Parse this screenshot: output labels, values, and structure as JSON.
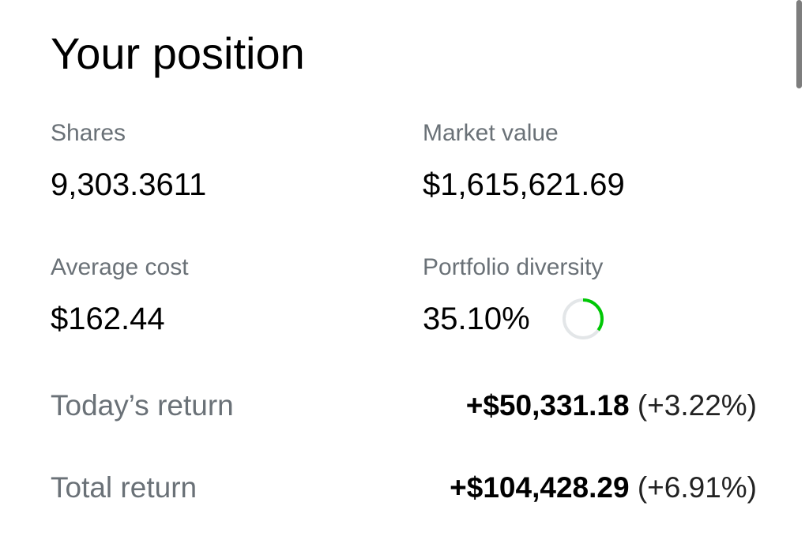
{
  "header": {
    "title": "Your position"
  },
  "stats": {
    "shares": {
      "label": "Shares",
      "value": "9,303.3611"
    },
    "market_value": {
      "label": "Market value",
      "value": "$1,615,621.69"
    },
    "average_cost": {
      "label": "Average cost",
      "value": "$162.44"
    },
    "portfolio_diversity": {
      "label": "Portfolio diversity",
      "percent": {
        "value": 35.1,
        "label": "35.10%"
      }
    }
  },
  "returns": {
    "today": {
      "label": "Today’s return",
      "amount": "+$50,331.18",
      "percent": "(+3.22%)"
    },
    "total": {
      "label": "Total return",
      "amount": "+$104,428.29",
      "percent": "(+6.91%)"
    }
  }
}
